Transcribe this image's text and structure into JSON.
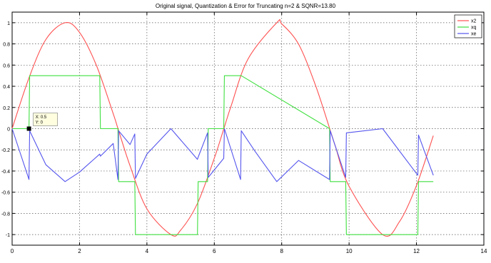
{
  "chart_data": {
    "type": "line",
    "title": "Original signal, Quantization & Error for Truncating n=2 & SQNR=13.80",
    "xlabel": "",
    "ylabel": "",
    "xlim": [
      0,
      14
    ],
    "ylim": [
      -1.1,
      1.1
    ],
    "xticks": [
      0,
      2,
      4,
      6,
      8,
      10,
      12,
      14
    ],
    "yticks": [
      1,
      0.8,
      0.6,
      0.4,
      0.2,
      0,
      -0.2,
      -0.4,
      -0.6,
      -0.8,
      -1
    ],
    "xtick_labels": [
      "0",
      "2",
      "4",
      "6",
      "8",
      "10",
      "12",
      "14"
    ],
    "ytick_labels": [
      "1",
      "0.8",
      "0.6",
      "0.4",
      "0.2",
      "0",
      "-0.2",
      "-0.4",
      "-0.6",
      "-0.8",
      "-1"
    ],
    "grid": true,
    "legend_position": "top-right",
    "series": [
      {
        "name": "x2",
        "color": "#ff5050",
        "x": [
          0,
          0.5,
          1.0,
          1.571,
          2.0,
          2.5,
          3.0,
          3.142,
          3.5,
          4.0,
          4.712,
          5.0,
          5.5,
          6.0,
          6.283,
          6.5,
          7.0,
          7.854,
          8.0,
          8.5,
          9.0,
          9.425,
          9.6,
          10.0,
          10.996,
          11.5,
          12.0,
          12.5
        ],
        "values": [
          0,
          0.479,
          0.841,
          1.0,
          0.909,
          0.598,
          0.141,
          0.0,
          -0.351,
          -0.757,
          -1.0,
          -0.959,
          -0.706,
          -0.279,
          0.0,
          0.215,
          0.657,
          1.0,
          0.989,
          0.798,
          0.412,
          0.0,
          -0.174,
          -0.544,
          -1.0,
          -0.876,
          -0.537,
          -0.066
        ]
      },
      {
        "name": "xq",
        "color": "#40e040",
        "x": [
          0,
          0.5,
          0.52,
          1.0,
          2.6,
          2.62,
          3.14,
          3.16,
          3.64,
          3.66,
          3.9,
          3.92,
          5.5,
          5.52,
          5.8,
          5.82,
          6.28,
          6.3,
          6.78,
          6.8,
          9.42,
          9.44,
          9.9,
          9.92,
          12.04,
          12.06,
          12.5
        ],
        "values": [
          0,
          0,
          0.5,
          0.5,
          0.5,
          0,
          0,
          -0.5,
          -0.5,
          -1,
          -1,
          -1,
          -1,
          -0.5,
          -0.5,
          0,
          0,
          0.5,
          0.5,
          0.5,
          0,
          -0.5,
          -0.5,
          -1,
          -1,
          -0.5,
          -0.5
        ]
      },
      {
        "name": "xe",
        "color": "#5555ee",
        "x": [
          0,
          0.5,
          0.52,
          1.0,
          1.571,
          2.0,
          2.6,
          2.62,
          3.0,
          3.14,
          3.16,
          3.5,
          3.64,
          3.66,
          4.0,
          4.712,
          5.5,
          5.52,
          5.8,
          5.82,
          6.28,
          6.3,
          6.78,
          6.8,
          7.2,
          7.854,
          8.5,
          9.42,
          9.44,
          9.9,
          9.92,
          10.996,
          12.04,
          12.06,
          12.5
        ],
        "values": [
          0,
          -0.48,
          -0.02,
          -0.34,
          -0.5,
          -0.41,
          -0.24,
          -0.26,
          -0.14,
          -0.48,
          -0.02,
          -0.15,
          -0.05,
          -0.47,
          -0.24,
          0,
          -0.29,
          -0.27,
          -0.04,
          -0.46,
          -0.28,
          0,
          -0.48,
          -0.02,
          -0.21,
          -0.5,
          -0.3,
          -0.48,
          -0.02,
          -0.46,
          -0.04,
          0,
          -0.44,
          -0.06,
          -0.44
        ]
      }
    ],
    "datatip": {
      "x": 0.5,
      "y": 0,
      "lines": [
        "X: 0.5",
        "Y: 0"
      ]
    }
  }
}
